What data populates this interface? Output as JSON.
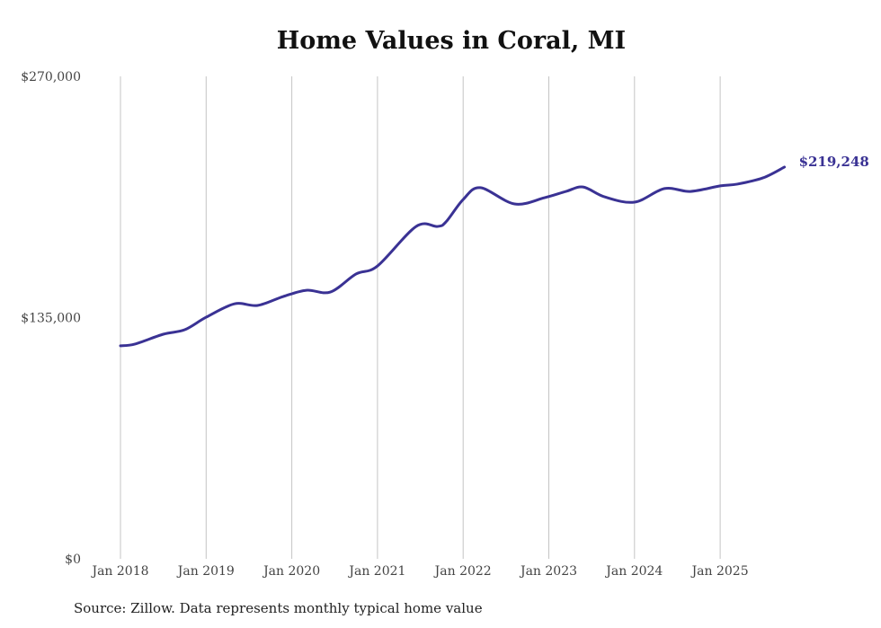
{
  "chart_data": {
    "type": "line",
    "title": "Home Values in Coral, MI",
    "xlabel": "",
    "ylabel": "",
    "ylim": [
      0,
      270000
    ],
    "xlim": [
      2018.0,
      2025.75
    ],
    "y_ticks": [
      {
        "value": 0,
        "label": "$0"
      },
      {
        "value": 135000,
        "label": "$135,000"
      },
      {
        "value": 270000,
        "label": "$270,000"
      }
    ],
    "x_ticks": [
      {
        "value": 2018,
        "label": "Jan 2018"
      },
      {
        "value": 2019,
        "label": "Jan 2019"
      },
      {
        "value": 2020,
        "label": "Jan 2020"
      },
      {
        "value": 2021,
        "label": "Jan 2021"
      },
      {
        "value": 2022,
        "label": "Jan 2022"
      },
      {
        "value": 2023,
        "label": "Jan 2023"
      },
      {
        "value": 2024,
        "label": "Jan 2024"
      },
      {
        "value": 2025,
        "label": "Jan 2025"
      }
    ],
    "grid": "vertical",
    "series": [
      {
        "name": "Typical home value",
        "color": "#3a3294",
        "x": [
          2018.0,
          2018.17,
          2018.5,
          2018.75,
          2019.0,
          2019.33,
          2019.6,
          2019.9,
          2020.17,
          2020.45,
          2020.75,
          2021.0,
          2021.45,
          2021.7,
          2021.8,
          2022.0,
          2022.2,
          2022.6,
          2022.95,
          2023.2,
          2023.4,
          2023.65,
          2024.0,
          2024.35,
          2024.65,
          2025.0,
          2025.2,
          2025.5,
          2025.75
        ],
        "values": [
          119200,
          120200,
          125700,
          128200,
          135200,
          142700,
          141800,
          146800,
          150300,
          149300,
          159400,
          163900,
          186000,
          186000,
          188600,
          201100,
          207700,
          198600,
          202100,
          205600,
          208100,
          202600,
          199600,
          207200,
          205600,
          208700,
          209700,
          213200,
          219248
        ]
      }
    ],
    "end_label": "$219,248"
  },
  "source": "Source: Zillow. Data represents monthly typical home value"
}
